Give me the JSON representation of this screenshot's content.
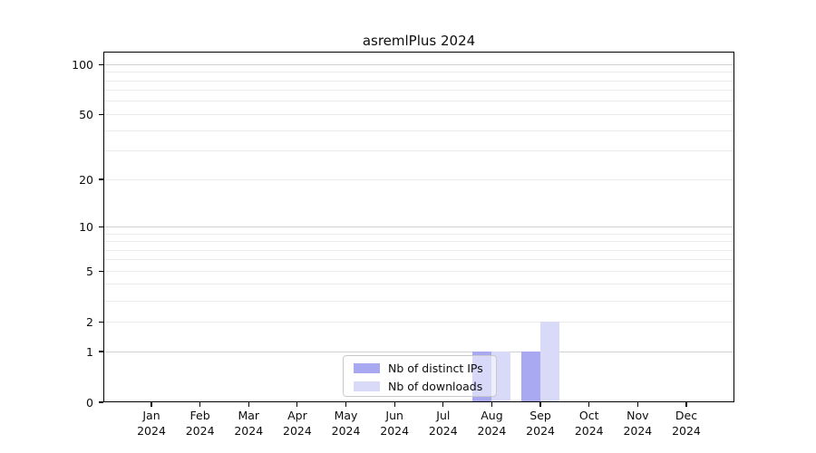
{
  "chart_data": {
    "type": "bar",
    "title": "asremlPlus 2024",
    "categories": [
      "Jan",
      "Feb",
      "Mar",
      "Apr",
      "May",
      "Jun",
      "Jul",
      "Aug",
      "Sep",
      "Oct",
      "Nov",
      "Dec"
    ],
    "x_year_line": "2024",
    "series": [
      {
        "name": "Nb of distinct IPs",
        "color": "#a9a9f1",
        "values": [
          0,
          0,
          0,
          0,
          0,
          0,
          0,
          1,
          1,
          0,
          0,
          0
        ]
      },
      {
        "name": "Nb of downloads",
        "color": "#d9d9f8",
        "values": [
          0,
          0,
          0,
          0,
          0,
          0,
          0,
          1,
          2,
          0,
          0,
          0
        ]
      }
    ],
    "y_axis": {
      "scale": "log10(1+x)",
      "tick_values": [
        0,
        1,
        2,
        5,
        10,
        20,
        50,
        100
      ],
      "range": [
        0,
        119
      ]
    },
    "grid": {
      "major_values": [
        1,
        10,
        100
      ],
      "minor_values": [
        2,
        3,
        4,
        5,
        6,
        7,
        8,
        9,
        20,
        30,
        40,
        50,
        60,
        70,
        80,
        90
      ],
      "major_color": "#d0d0d0",
      "minor_color": "#ebebeb"
    },
    "legend_position": "bottom-center"
  }
}
